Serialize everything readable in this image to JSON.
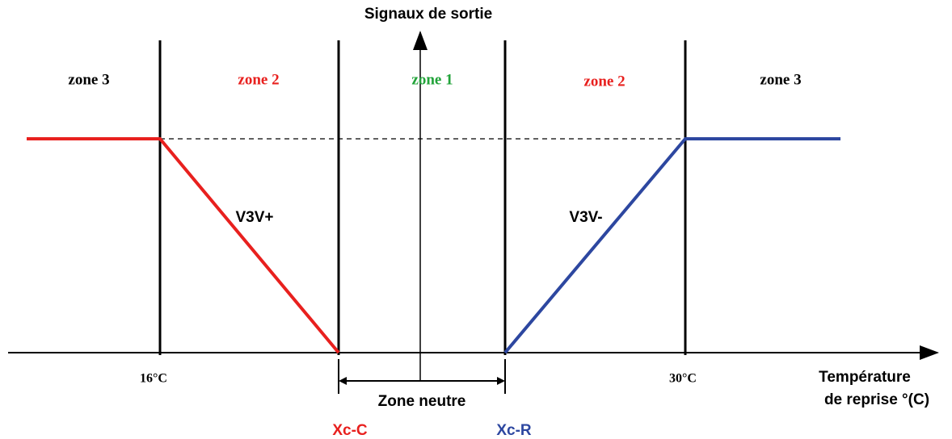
{
  "axis": {
    "y_label": "Signaux de sortie",
    "x_label_line1": "Température",
    "x_label_line2": "de reprise °(C)"
  },
  "zones": [
    "zone 3",
    "zone 2",
    "zone 1",
    "zone 2",
    "zone 3"
  ],
  "curves": {
    "left": "V3V+",
    "right": "V3V-"
  },
  "temperatures": {
    "low": "16°C",
    "high": "30°C"
  },
  "neutral_zone": "Zone neutre",
  "points": {
    "left": "Xc-C",
    "right": "Xc-R"
  }
}
